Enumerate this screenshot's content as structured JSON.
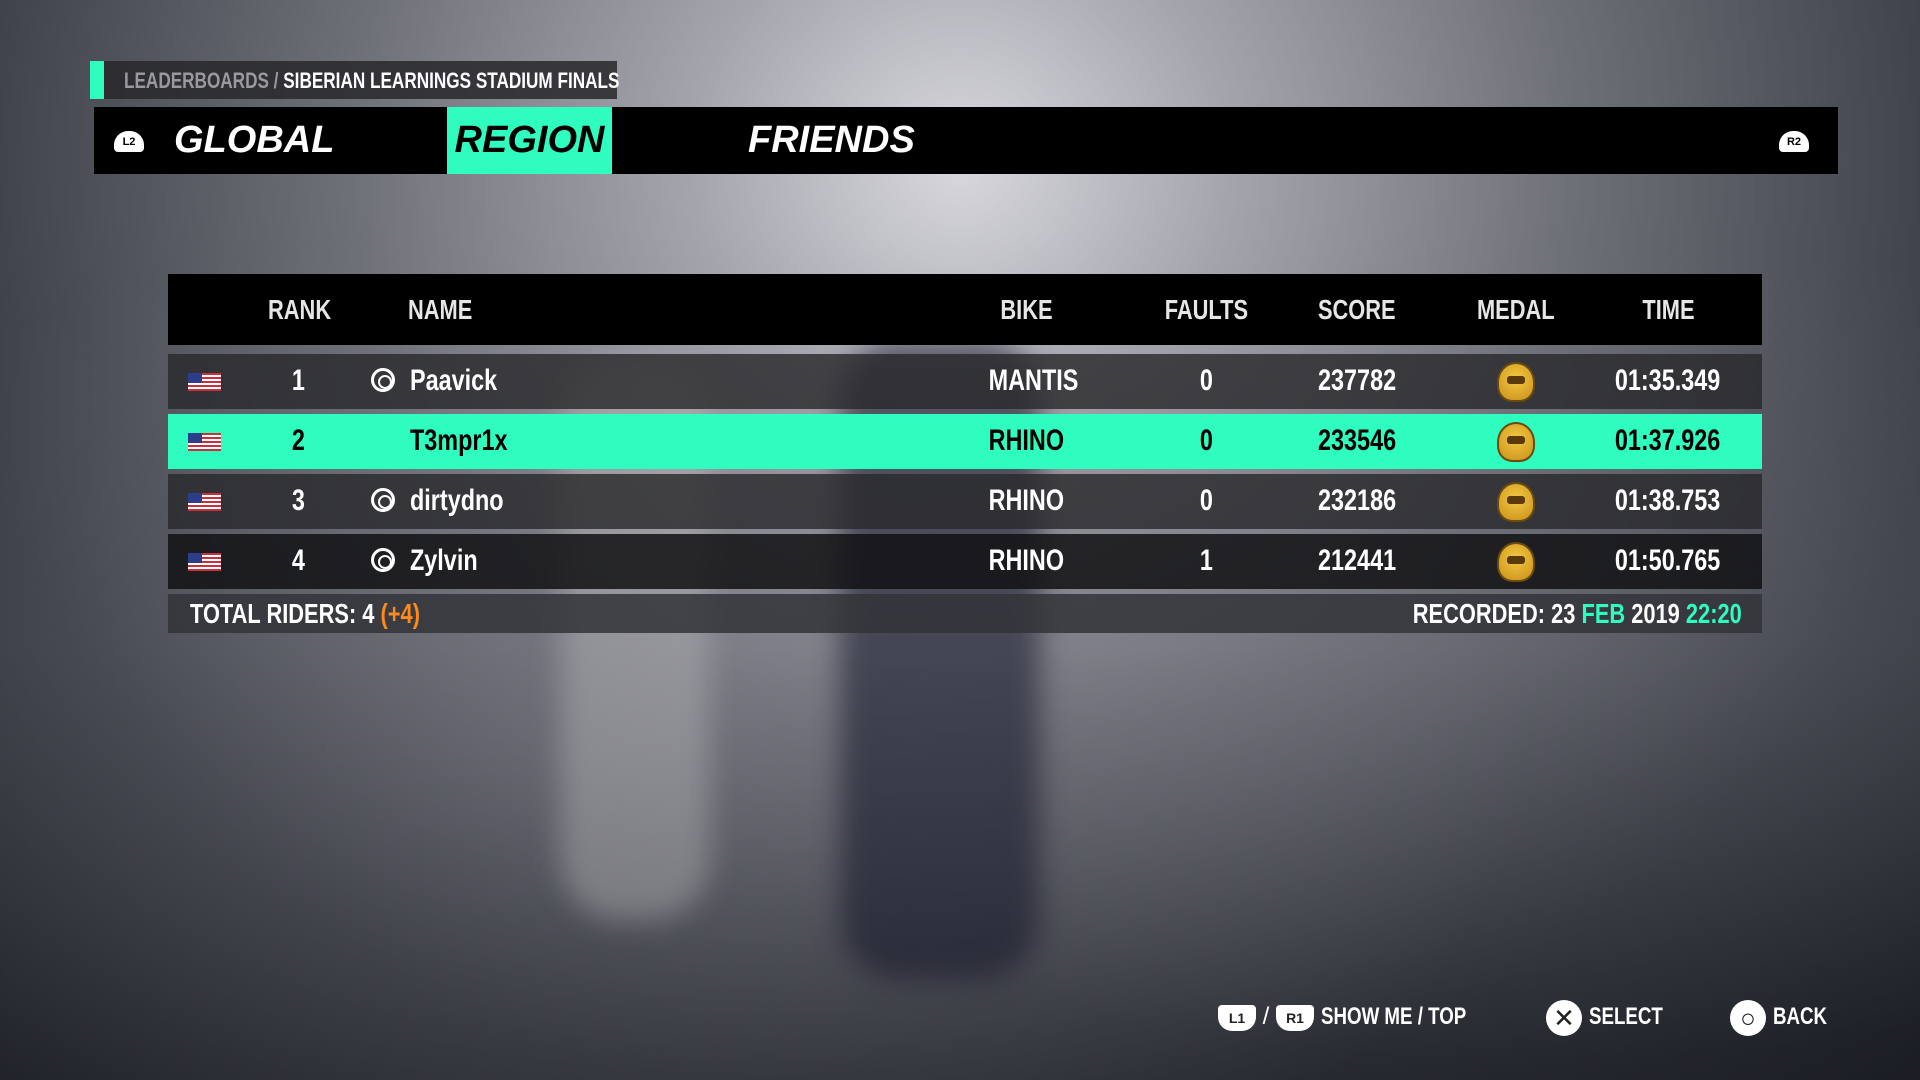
{
  "breadcrumb": {
    "parent": "LEADERBOARDS /",
    "current": "SIBERIAN LEARNINGS STADIUM FINALS"
  },
  "tabs": {
    "left_button": "L2",
    "right_button": "R2",
    "items": [
      {
        "label": "GLOBAL",
        "active": false
      },
      {
        "label": "REGION",
        "active": true
      },
      {
        "label": "FRIENDS",
        "active": false
      }
    ]
  },
  "table": {
    "headers": {
      "rank": "RANK",
      "name": "NAME",
      "bike": "BIKE",
      "faults": "FAULTS",
      "score": "SCORE",
      "medal": "MEDAL",
      "time": "TIME"
    },
    "rows": [
      {
        "flag": "us-flag-icon",
        "rank": "1",
        "name": "Paavick",
        "uplay": true,
        "bike": "MANTIS",
        "faults": "0",
        "score": "237782",
        "medal": "gold-medal-icon",
        "time": "01:35.349"
      },
      {
        "flag": "us-flag-icon",
        "rank": "2",
        "name": "T3mpr1x",
        "uplay": false,
        "highlighted": true,
        "bike": "RHINO",
        "faults": "0",
        "score": "233546",
        "medal": "gold-medal-icon",
        "time": "01:37.926"
      },
      {
        "flag": "us-flag-icon",
        "rank": "3",
        "name": "dirtydno",
        "uplay": true,
        "bike": "RHINO",
        "faults": "0",
        "score": "232186",
        "medal": "gold-medal-icon",
        "time": "01:38.753"
      },
      {
        "flag": "us-flag-icon",
        "rank": "4",
        "name": "Zylvin",
        "uplay": true,
        "bike": "RHINO",
        "faults": "1",
        "score": "212441",
        "medal": "gold-medal-icon",
        "time": "01:50.765"
      }
    ]
  },
  "footer": {
    "total_label": "TOTAL RIDERS:",
    "total": "4",
    "delta": "(+4)",
    "recorded_label": "RECORDED:",
    "day": "23",
    "month": "FEB",
    "year": "2019",
    "time": "22:20"
  },
  "legend": {
    "l1": "L1",
    "sep": "/",
    "r1": "R1",
    "show_me": "SHOW ME / TOP",
    "x_glyph": "✕",
    "select": "SELECT",
    "o_glyph": "○",
    "back": "BACK"
  },
  "colors": {
    "accent": "#2ffdbf",
    "delta": "#ff8a1a"
  }
}
